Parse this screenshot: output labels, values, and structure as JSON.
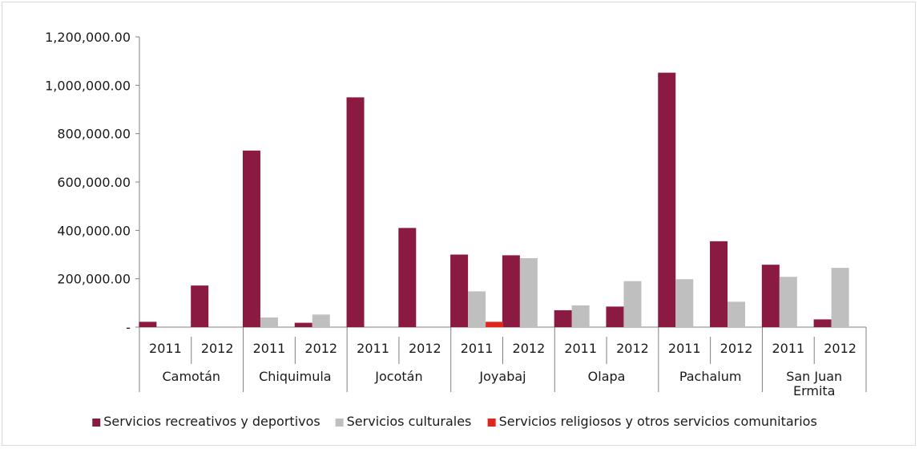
{
  "chart_data": {
    "type": "bar",
    "title": "",
    "xlabel": "",
    "ylabel": "",
    "ylim": [
      0,
      1200000
    ],
    "y_ticks": [
      "1,200,000.00",
      "1,000,000.00",
      "800,000.00",
      "600,000.00",
      "400,000.00",
      "200,000.00",
      "-"
    ],
    "grid": false,
    "legend_position": "bottom",
    "groups": [
      {
        "label": [
          "Camotán"
        ],
        "years": [
          "2011",
          "2012"
        ]
      },
      {
        "label": [
          "Chiquimula"
        ],
        "years": [
          "2011",
          "2012"
        ]
      },
      {
        "label": [
          "Jocotán"
        ],
        "years": [
          "2011",
          "2012"
        ]
      },
      {
        "label": [
          "Joyabaj"
        ],
        "years": [
          "2011",
          "2012"
        ]
      },
      {
        "label": [
          "Olapa"
        ],
        "years": [
          "2011",
          "2012"
        ]
      },
      {
        "label": [
          "Pachalum"
        ],
        "years": [
          "2011",
          "2012"
        ]
      },
      {
        "label": [
          "San Juan",
          "Ermita"
        ],
        "years": [
          "2011",
          "2012"
        ]
      }
    ],
    "series": [
      {
        "name": "Servicios recreativos y deportivos",
        "color": "#8b1a42",
        "values": [
          22000,
          172000,
          730000,
          18000,
          950000,
          410000,
          300000,
          297000,
          70000,
          85000,
          1052000,
          355000,
          258000,
          32000
        ]
      },
      {
        "name": "Servicios culturales",
        "color": "#bfbfbf",
        "values": [
          0,
          0,
          40000,
          52000,
          0,
          0,
          148000,
          285000,
          90000,
          190000,
          198000,
          105000,
          208000,
          245000
        ]
      },
      {
        "name": "Servicios religiosos y otros servicios comunitarios",
        "color": "#e0261c",
        "values": [
          0,
          0,
          0,
          0,
          0,
          0,
          22000,
          0,
          0,
          0,
          0,
          0,
          0,
          0
        ]
      }
    ]
  }
}
